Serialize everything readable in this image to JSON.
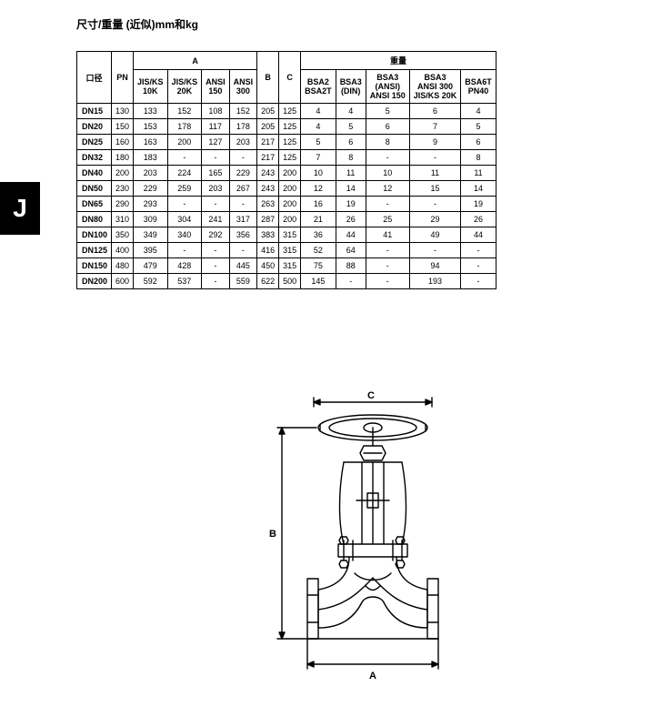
{
  "title": "尺寸/重量 (近似)mm和kg",
  "tab_letter": "J",
  "table": {
    "group_headers": {
      "A": "A",
      "B": "B",
      "C": "C",
      "weight": "重量"
    },
    "header_row": {
      "caliber": "口径",
      "pn": "PN",
      "jisks10k": "JIS/KS\n10K",
      "jisks20k": "JIS/KS\n20K",
      "ansi150": "ANSI\n150",
      "ansi300": "ANSI\n300",
      "bsa2": "BSA2\nBSA2T",
      "bsa3din": "BSA3\n(DIN)",
      "bsa3ansi": "BSA3\n(ANSI)\nANSI 150",
      "bsa3ansi300": "BSA3\nANSI 300\nJIS/KS 20K",
      "bsa6t": "BSA6T\nPN40"
    },
    "rows": [
      {
        "dn": "DN15",
        "pn": "130",
        "a1": "133",
        "a2": "152",
        "a3": "108",
        "a4": "152",
        "b": "205",
        "c": "125",
        "w1": "4",
        "w2": "4",
        "w3": "5",
        "w4": "6",
        "w5": "4"
      },
      {
        "dn": "DN20",
        "pn": "150",
        "a1": "153",
        "a2": "178",
        "a3": "117",
        "a4": "178",
        "b": "205",
        "c": "125",
        "w1": "4",
        "w2": "5",
        "w3": "6",
        "w4": "7",
        "w5": "5"
      },
      {
        "dn": "DN25",
        "pn": "160",
        "a1": "163",
        "a2": "200",
        "a3": "127",
        "a4": "203",
        "b": "217",
        "c": "125",
        "w1": "5",
        "w2": "6",
        "w3": "8",
        "w4": "9",
        "w5": "6"
      },
      {
        "dn": "DN32",
        "pn": "180",
        "a1": "183",
        "a2": "-",
        "a3": "-",
        "a4": "-",
        "b": "217",
        "c": "125",
        "w1": "7",
        "w2": "8",
        "w3": "-",
        "w4": "-",
        "w5": "8"
      },
      {
        "dn": "DN40",
        "pn": "200",
        "a1": "203",
        "a2": "224",
        "a3": "165",
        "a4": "229",
        "b": "243",
        "c": "200",
        "w1": "10",
        "w2": "11",
        "w3": "10",
        "w4": "11",
        "w5": "11"
      },
      {
        "dn": "DN50",
        "pn": "230",
        "a1": "229",
        "a2": "259",
        "a3": "203",
        "a4": "267",
        "b": "243",
        "c": "200",
        "w1": "12",
        "w2": "14",
        "w3": "12",
        "w4": "15",
        "w5": "14"
      },
      {
        "dn": "DN65",
        "pn": "290",
        "a1": "293",
        "a2": "-",
        "a3": "-",
        "a4": "-",
        "b": "263",
        "c": "200",
        "w1": "16",
        "w2": "19",
        "w3": "-",
        "w4": "-",
        "w5": "19"
      },
      {
        "dn": "DN80",
        "pn": "310",
        "a1": "309",
        "a2": "304",
        "a3": "241",
        "a4": "317",
        "b": "287",
        "c": "200",
        "w1": "21",
        "w2": "26",
        "w3": "25",
        "w4": "29",
        "w5": "26"
      },
      {
        "dn": "DN100",
        "pn": "350",
        "a1": "349",
        "a2": "340",
        "a3": "292",
        "a4": "356",
        "b": "383",
        "c": "315",
        "w1": "36",
        "w2": "44",
        "w3": "41",
        "w4": "49",
        "w5": "44"
      },
      {
        "dn": "DN125",
        "pn": "400",
        "a1": "395",
        "a2": "-",
        "a3": "-",
        "a4": "-",
        "b": "416",
        "c": "315",
        "w1": "52",
        "w2": "64",
        "w3": "-",
        "w4": "-",
        "w5": "-"
      },
      {
        "dn": "DN150",
        "pn": "480",
        "a1": "479",
        "a2": "428",
        "a3": "-",
        "a4": "445",
        "b": "450",
        "c": "315",
        "w1": "75",
        "w2": "88",
        "w3": "-",
        "w4": "94",
        "w5": "-"
      },
      {
        "dn": "DN200",
        "pn": "600",
        "a1": "592",
        "a2": "537",
        "a3": "-",
        "a4": "559",
        "b": "622",
        "c": "500",
        "w1": "145",
        "w2": "-",
        "w3": "-",
        "w4": "193",
        "w5": "-"
      }
    ]
  },
  "diagram": {
    "label_A": "A",
    "label_B": "B",
    "label_C": "C",
    "stroke": "#000",
    "stroke_width": 1.4
  }
}
